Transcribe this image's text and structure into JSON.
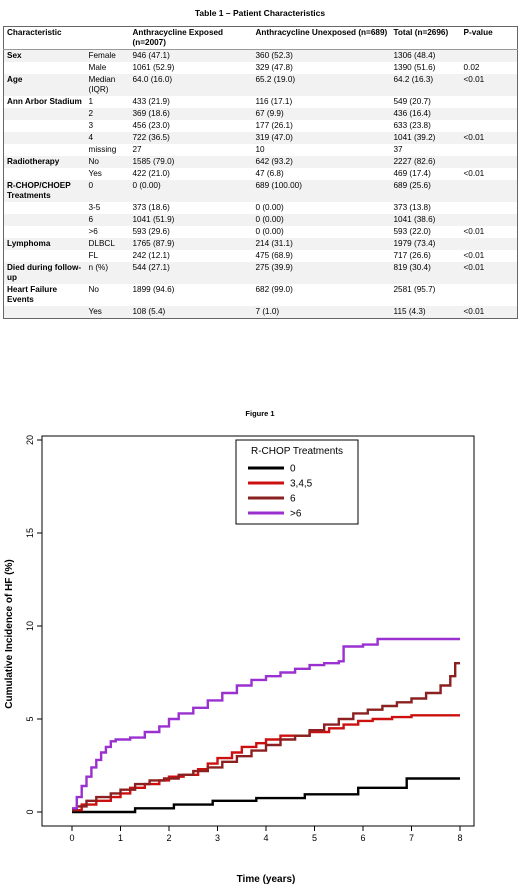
{
  "table": {
    "title": "Table 1 – Patient Characteristics",
    "headers": [
      "Characteristic",
      "",
      "Anthracycline Exposed (n=2007)",
      "Anthracycline Unexposed (n=689)",
      "Total (n=2696)",
      "P-value"
    ],
    "rows": [
      [
        "Sex",
        "Female",
        "946 (47.1)",
        "360 (52.3)",
        "1306 (48.4)",
        ""
      ],
      [
        "",
        "Male",
        "1061 (52.9)",
        "329 (47.8)",
        "1390 (51.6)",
        "0.02"
      ],
      [
        "Age",
        "Median (IQR)",
        "64.0 (16.0)",
        "65.2 (19.0)",
        "64.2 (16.3)",
        "<0.01"
      ],
      [
        "Ann Arbor Stadium",
        "1",
        "433 (21.9)",
        "116 (17.1)",
        "549 (20.7)",
        ""
      ],
      [
        "",
        "2",
        "369 (18.6)",
        "67 (9.9)",
        "436 (16.4)",
        ""
      ],
      [
        "",
        "3",
        "456 (23.0)",
        "177 (26.1)",
        "633 (23.8)",
        ""
      ],
      [
        "",
        "4",
        "722 (36.5)",
        "319 (47.0)",
        "1041 (39.2)",
        "<0.01"
      ],
      [
        "",
        "missing",
        "27",
        "10",
        "37",
        ""
      ],
      [
        "Radiotherapy",
        "No",
        "1585 (79.0)",
        "642 (93.2)",
        "2227 (82.6)",
        ""
      ],
      [
        "",
        "Yes",
        "422 (21.0)",
        "47 (6.8)",
        "469 (17.4)",
        "<0.01"
      ],
      [
        "R-CHOP/CHOEP Treatments",
        "0",
        "0 (0.00)",
        "689 (100.00)",
        "689 (25.6)",
        ""
      ],
      [
        "",
        "3-5",
        "373 (18.6)",
        "0 (0.00)",
        "373 (13.8)",
        ""
      ],
      [
        "",
        "6",
        "1041 (51.9)",
        "0 (0.00)",
        "1041 (38.6)",
        ""
      ],
      [
        "",
        ">6",
        "593 (29.6)",
        "0 (0.00)",
        "593 (22.0)",
        "<0.01"
      ],
      [
        "Lymphoma",
        "DLBCL",
        "1765 (87.9)",
        "214 (31.1)",
        "1979 (73.4)",
        ""
      ],
      [
        "",
        "FL",
        "242 (12.1)",
        "475 (68.9)",
        "717 (26.6)",
        "<0.01"
      ],
      [
        "Died during follow-up",
        "n (%)",
        "544 (27.1)",
        "275 (39.9)",
        "819 (30.4)",
        "<0.01"
      ],
      [
        "Heart Failure Events",
        "No",
        "1899 (94.6)",
        "682 (99.0)",
        "2581 (95.7)",
        ""
      ],
      [
        "",
        "Yes",
        "108 (5.4)",
        "7 (1.0)",
        "115 (4.3)",
        "<0.01"
      ]
    ]
  },
  "chart_data": {
    "type": "line",
    "step": true,
    "title": "Figure 1",
    "xlabel": "Time (years)",
    "ylabel": "Cumulative Incidence of HF (%)",
    "xlim": [
      0,
      8
    ],
    "ylim": [
      0,
      20
    ],
    "xticks": [
      0,
      1,
      2,
      3,
      4,
      5,
      6,
      7,
      8
    ],
    "yticks": [
      0,
      5,
      10,
      15,
      20
    ],
    "grid": false,
    "legend": {
      "title": "R-CHOP Treatments",
      "placement": "top-center"
    },
    "series": [
      {
        "name": "0",
        "color": "#000000",
        "x": [
          0,
          1.3,
          2.1,
          2.9,
          3.8,
          4.8,
          5.9,
          6.9,
          8
        ],
        "y": [
          0,
          0.2,
          0.4,
          0.6,
          0.75,
          0.95,
          1.3,
          1.8,
          1.8
        ]
      },
      {
        "name": "3,4,5",
        "color": "#cc1010",
        "x": [
          0,
          0.2,
          0.5,
          0.8,
          1.0,
          1.2,
          1.5,
          1.8,
          2.0,
          2.3,
          2.6,
          2.8,
          3.0,
          3.3,
          3.5,
          3.8,
          4.0,
          4.3,
          4.6,
          4.9,
          5.3,
          5.6,
          5.9,
          6.2,
          6.6,
          7.0,
          8
        ],
        "y": [
          0.1,
          0.4,
          0.6,
          0.8,
          1.0,
          1.3,
          1.5,
          1.7,
          1.9,
          2.0,
          2.3,
          2.6,
          2.9,
          3.2,
          3.5,
          3.7,
          3.9,
          4.1,
          4.1,
          4.3,
          4.5,
          4.7,
          4.9,
          5.0,
          5.1,
          5.2,
          5.2
        ]
      },
      {
        "name": "6",
        "color": "#8b2020",
        "x": [
          0,
          0.1,
          0.3,
          0.5,
          0.8,
          1.0,
          1.3,
          1.6,
          1.9,
          2.2,
          2.5,
          2.8,
          3.1,
          3.4,
          3.7,
          4.0,
          4.3,
          4.6,
          4.9,
          5.2,
          5.5,
          5.8,
          6.1,
          6.4,
          6.7,
          7.0,
          7.3,
          7.6,
          7.8,
          7.9,
          8
        ],
        "y": [
          0.1,
          0.3,
          0.6,
          0.8,
          1.0,
          1.2,
          1.5,
          1.7,
          1.8,
          2.0,
          2.2,
          2.4,
          2.7,
          3.0,
          3.3,
          3.6,
          3.9,
          4.1,
          4.4,
          4.7,
          5.0,
          5.3,
          5.5,
          5.7,
          5.9,
          6.1,
          6.4,
          6.8,
          7.3,
          8.0,
          8.0
        ]
      },
      {
        "name": ">6",
        "color": "#9b30d0",
        "x": [
          0,
          0.1,
          0.2,
          0.3,
          0.4,
          0.5,
          0.6,
          0.7,
          0.8,
          0.9,
          1.2,
          1.5,
          1.8,
          2.0,
          2.2,
          2.5,
          2.8,
          3.1,
          3.4,
          3.7,
          4.0,
          4.3,
          4.6,
          4.9,
          5.2,
          5.5,
          5.6,
          6.0,
          6.3,
          8
        ],
        "y": [
          0.2,
          0.8,
          1.4,
          1.9,
          2.4,
          2.8,
          3.2,
          3.5,
          3.8,
          3.9,
          4.0,
          4.3,
          4.6,
          5.0,
          5.3,
          5.6,
          6.0,
          6.4,
          6.8,
          7.1,
          7.3,
          7.5,
          7.7,
          7.9,
          8.0,
          8.1,
          8.9,
          9.0,
          9.3,
          9.3
        ]
      }
    ]
  }
}
